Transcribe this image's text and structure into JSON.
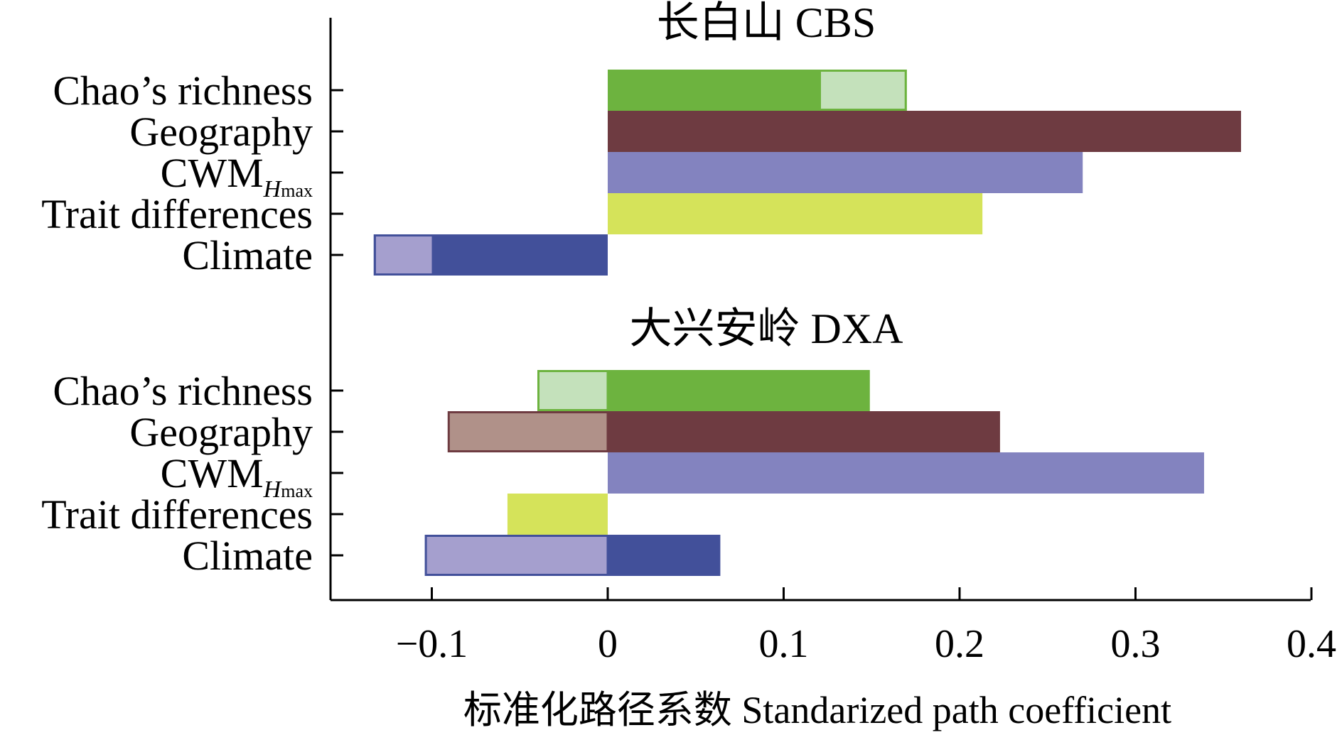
{
  "chart_data": {
    "type": "bar",
    "orientation": "horizontal",
    "xlabel": "标准化路径系数 Standarized path coefficient",
    "xlim": [
      -0.16,
      0.4
    ],
    "xticks": [
      -0.1,
      0,
      0.1,
      0.2,
      0.3,
      0.4
    ],
    "xtick_labels": [
      "−0.1",
      "0",
      "0.1",
      "0.2",
      "0.3",
      "0.4"
    ],
    "categories": [
      "Chao’s richness",
      "Geography",
      "CWM",
      "Trait differences",
      "Climate"
    ],
    "category_subscript": {
      "CWM": "Hmax"
    },
    "panels": [
      {
        "title": "长白山 CBS",
        "bars": [
          {
            "category": "Chao’s richness",
            "value": 0.17,
            "color": "#6db33f",
            "inner": {
              "from": 0.12,
              "to": 0.17,
              "color": "#c4e1bb"
            }
          },
          {
            "category": "Geography",
            "value": 0.36,
            "color": "#6e3b41"
          },
          {
            "category": "CWM",
            "value": 0.27,
            "color": "#8383bf"
          },
          {
            "category": "Trait differences",
            "value": 0.213,
            "color": "#d5e35a"
          },
          {
            "category": "Climate",
            "value": -0.133,
            "color": "#42509a",
            "inner": {
              "from": -0.133,
              "to": -0.1,
              "color": "#a59fce"
            }
          }
        ]
      },
      {
        "title": "大兴安岭 DXA",
        "bars": [
          {
            "category": "Chao’s richness",
            "value": 0.149,
            "color": "#6db33f",
            "neg": {
              "value": -0.04,
              "color": "#c4e1bb",
              "edge": "#6db33f"
            }
          },
          {
            "category": "Geography",
            "value": 0.223,
            "color": "#6e3b41",
            "neg": {
              "value": -0.091,
              "color": "#b09189",
              "edge": "#6e3b41"
            }
          },
          {
            "category": "CWM",
            "value": 0.339,
            "color": "#8383bf"
          },
          {
            "category": "Trait differences",
            "value": -0.057,
            "color": "#d5e35a"
          },
          {
            "category": "Climate",
            "value": 0.064,
            "color": "#42509a",
            "neg": {
              "value": -0.104,
              "color": "#a59fce",
              "edge": "#42509a"
            }
          }
        ]
      }
    ]
  }
}
